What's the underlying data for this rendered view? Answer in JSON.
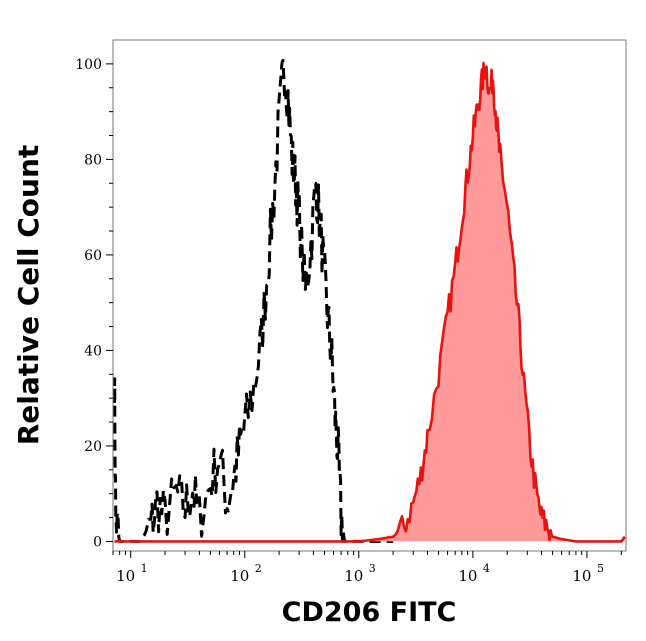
{
  "chart_data": {
    "type": "area",
    "xlabel": "CD206 FITC",
    "ylabel": "Relative Cell Count",
    "x_scale": "log",
    "xlim": [
      7,
      220000
    ],
    "ylim": [
      -2,
      105
    ],
    "grid": false,
    "y_ticks": [
      0,
      20,
      40,
      60,
      80,
      100
    ],
    "x_ticks": [
      {
        "base": "10",
        "exp": "1",
        "value": 10
      },
      {
        "base": "10",
        "exp": "2",
        "value": 100
      },
      {
        "base": "10",
        "exp": "3",
        "value": 1000
      },
      {
        "base": "10",
        "exp": "4",
        "value": 10000
      },
      {
        "base": "10",
        "exp": "5",
        "value": 100000
      }
    ],
    "series": [
      {
        "style": "dashed",
        "color": "#000000",
        "fill": "none",
        "x": [
          7.2,
          7.4,
          8,
          9,
          12,
          15,
          17,
          20,
          25,
          30,
          35,
          40,
          50,
          60,
          70,
          80,
          90,
          100,
          120,
          140,
          160,
          180,
          200,
          220,
          240,
          260,
          280,
          300,
          340,
          380,
          420,
          460,
          500,
          540,
          580,
          620,
          660,
          700,
          750,
          800,
          1000,
          2000
        ],
        "y": [
          35,
          5,
          0,
          0,
          0,
          3,
          8,
          5,
          10,
          7,
          11,
          5,
          12,
          18,
          8,
          13,
          20,
          24,
          32,
          42,
          58,
          72,
          88,
          100,
          93,
          80,
          75,
          68,
          52,
          62,
          75,
          66,
          55,
          46,
          38,
          26,
          18,
          5,
          0,
          0,
          0,
          0
        ]
      },
      {
        "style": "solid",
        "color": "#e8130f",
        "fill": "#ff9a9a",
        "x": [
          7.2,
          100,
          1000,
          1500,
          2000,
          2500,
          3000,
          3500,
          4000,
          5000,
          6000,
          7000,
          8000,
          9000,
          10000,
          11000,
          12000,
          13000,
          14000,
          15000,
          16000,
          17000,
          18000,
          20000,
          22000,
          25000,
          28000,
          32000,
          36000,
          40000,
          45000,
          50000,
          60000,
          80000,
          120000,
          200000,
          215000
        ],
        "y": [
          0,
          0,
          0,
          0.5,
          1,
          3,
          8,
          14,
          22,
          35,
          47,
          57,
          68,
          77,
          85,
          91,
          96,
          100,
          94,
          97,
          89,
          82,
          78,
          70,
          60,
          47,
          33,
          19,
          10,
          5,
          3,
          1,
          0.5,
          0,
          0,
          0,
          1
        ]
      }
    ]
  }
}
